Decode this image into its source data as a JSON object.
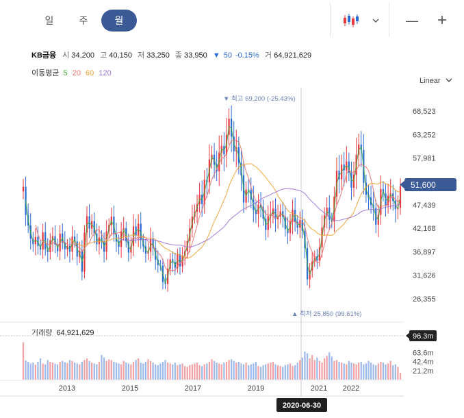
{
  "period_tabs": [
    {
      "label": "일",
      "active": false
    },
    {
      "label": "주",
      "active": false
    },
    {
      "label": "월",
      "active": true
    }
  ],
  "toolbar": {
    "chart_type_icon": "candlestick-icon",
    "dropdown_icon": "chevron-down-icon",
    "zoom_out_label": "—",
    "zoom_in_label": "+"
  },
  "quote": {
    "name": "KB금융",
    "open_label": "시",
    "open": "34,200",
    "high_label": "고",
    "high": "40,150",
    "low_label": "저",
    "low": "33,250",
    "close_label": "종",
    "close": "33,950",
    "change_arrow": "▼",
    "change": "50",
    "change_pct": "-0.15%",
    "volume_label": "거",
    "volume": "64,921,629"
  },
  "moving_averages": {
    "label": "이동평균",
    "items": [
      {
        "period": "5",
        "color": "#3daa3d"
      },
      {
        "period": "20",
        "color": "#e8706a"
      },
      {
        "period": "60",
        "color": "#f0a030"
      },
      {
        "period": "120",
        "color": "#9b72d8"
      }
    ]
  },
  "scale_label": "Linear",
  "colors": {
    "up": "#e8373f",
    "down": "#2b6bd6",
    "accent": "#3b5a95"
  },
  "chart_data": {
    "type": "candlestick",
    "x_tick_labels": [
      "2013",
      "2015",
      "2017",
      "2019",
      "2021",
      "2022"
    ],
    "y_tick_labels": [
      "68,523",
      "63,252",
      "57,981",
      "52,710",
      "47,439",
      "42,168",
      "36,897",
      "31,626",
      "26,355"
    ],
    "y_range": [
      21084,
      73794
    ],
    "current_price_label": "51,600",
    "max_label": "▼ 최고 69,200 (-25.43%)",
    "min_label": "▲ 최저 25,850 (99.61%)",
    "crosshair_date": "2020-06-30",
    "volume_label": "거래량",
    "volume_value": "64,921,629",
    "volume_tick_labels": [
      "63.6m",
      "42.4m",
      "21.2m"
    ],
    "volume_current_label": "96.3m",
    "volume_max": 100,
    "monthly_close": [
      51500,
      45200,
      42800,
      39800,
      38600,
      40200,
      38200,
      37400,
      41300,
      37500,
      36800,
      39500,
      40400,
      38500,
      37000,
      41000,
      39000,
      37500,
      38200,
      36900,
      40300,
      39200,
      35800,
      37100,
      32400,
      41200,
      44900,
      42100,
      43800,
      41000,
      38600,
      40100,
      39300,
      36900,
      41500,
      42900,
      44800,
      40800,
      39200,
      38000,
      41500,
      42200,
      39200,
      36700,
      38200,
      42600,
      40600,
      43200,
      39500,
      38100,
      36500,
      36900,
      39800,
      37700,
      35100,
      33900,
      33800,
      30100,
      29700,
      33100,
      35200,
      34600,
      33300,
      36300,
      33600,
      36000,
      37000,
      39300,
      42200,
      44800,
      45900,
      47600,
      49700,
      47600,
      53100,
      52500,
      57600,
      58700,
      56500,
      55000,
      59200,
      60700,
      58800,
      63200,
      66800,
      62800,
      59500,
      60400,
      56900,
      54100,
      48000,
      50900,
      50800,
      48600,
      46300,
      45400,
      47500,
      47000,
      44300,
      41800,
      44900,
      45300,
      46600,
      44200,
      44800,
      46000,
      44800,
      42000,
      41100,
      43700,
      46300,
      43600,
      42300,
      44000,
      41600,
      37700,
      30700,
      32700,
      34700,
      35900,
      34950,
      37900,
      42400,
      45100,
      46800,
      44100,
      43700,
      49300,
      55100,
      53200,
      56500,
      55200,
      57200,
      54700,
      51300,
      54200,
      58700,
      61000,
      59800,
      52400,
      49700,
      49100,
      47400,
      46700,
      43000,
      45200,
      51000,
      50000,
      47400,
      49500,
      50000,
      48300,
      46500,
      46800,
      51600
    ],
    "monthly_volume": [
      88,
      45,
      42,
      38,
      40,
      35,
      42,
      50,
      38,
      36,
      46,
      42,
      40,
      38,
      36,
      42,
      44,
      41,
      39,
      46,
      44,
      40,
      38,
      36,
      42,
      46,
      50,
      44,
      40,
      38,
      36,
      42,
      58,
      52,
      44,
      48,
      46,
      42,
      40,
      38,
      36,
      44,
      40,
      38,
      36,
      42,
      46,
      50,
      40,
      38,
      42,
      48,
      44,
      40,
      36,
      34,
      38,
      42,
      46,
      40,
      38,
      36,
      40,
      34,
      36,
      38,
      32,
      30,
      34,
      36,
      38,
      40,
      34,
      32,
      36,
      38,
      42,
      48,
      44,
      40,
      38,
      36,
      40,
      42,
      46,
      48,
      44,
      40,
      42,
      38,
      36,
      40,
      34,
      36,
      38,
      42,
      32,
      30,
      34,
      36,
      38,
      40,
      42,
      36,
      34,
      32,
      30,
      34,
      36,
      38,
      32,
      34,
      40,
      46,
      52,
      66,
      62,
      50,
      58,
      46,
      52,
      44,
      40,
      50,
      56,
      64,
      54,
      44,
      46,
      42,
      40,
      38,
      36,
      44,
      40,
      38,
      36,
      40,
      42,
      36,
      38,
      44,
      40,
      36,
      34,
      38,
      42,
      40,
      36,
      38,
      44,
      34,
      36,
      30,
      16
    ]
  }
}
